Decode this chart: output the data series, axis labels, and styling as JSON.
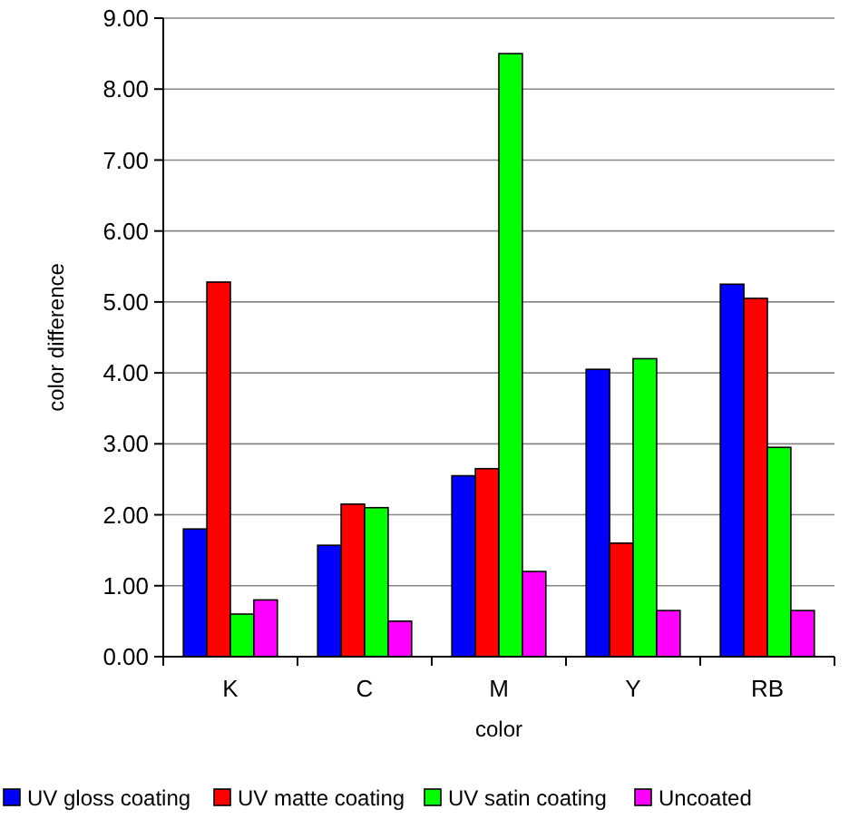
{
  "chart_data": {
    "type": "bar",
    "xlabel": "color",
    "ylabel": "color difference",
    "categories": [
      "K",
      "C",
      "M",
      "Y",
      "RB"
    ],
    "series": [
      {
        "name": "UV gloss coating",
        "color": "#0000ff",
        "values": [
          1.8,
          1.57,
          2.55,
          4.05,
          5.25
        ]
      },
      {
        "name": "UV matte coating",
        "color": "#ff0000",
        "values": [
          5.28,
          2.15,
          2.65,
          1.6,
          5.05
        ]
      },
      {
        "name": "UV satin coating",
        "color": "#00ff00",
        "values": [
          0.6,
          2.1,
          8.5,
          4.2,
          2.95
        ]
      },
      {
        "name": "Uncoated",
        "color": "#ff00ff",
        "values": [
          0.8,
          0.5,
          1.2,
          0.65,
          0.65
        ]
      }
    ],
    "ylim": [
      0,
      9
    ],
    "yticks": [
      {
        "value": 0,
        "label": "0.00"
      },
      {
        "value": 1,
        "label": "1.00"
      },
      {
        "value": 2,
        "label": "2.00"
      },
      {
        "value": 3,
        "label": "3.00"
      },
      {
        "value": 4,
        "label": "4.00"
      },
      {
        "value": 5,
        "label": "5.00"
      },
      {
        "value": 6,
        "label": "6.00"
      },
      {
        "value": 7,
        "label": "7.00"
      },
      {
        "value": 8,
        "label": "8.00"
      },
      {
        "value": 9,
        "label": "9.00"
      }
    ],
    "grid": "y",
    "legend": "bottom"
  }
}
